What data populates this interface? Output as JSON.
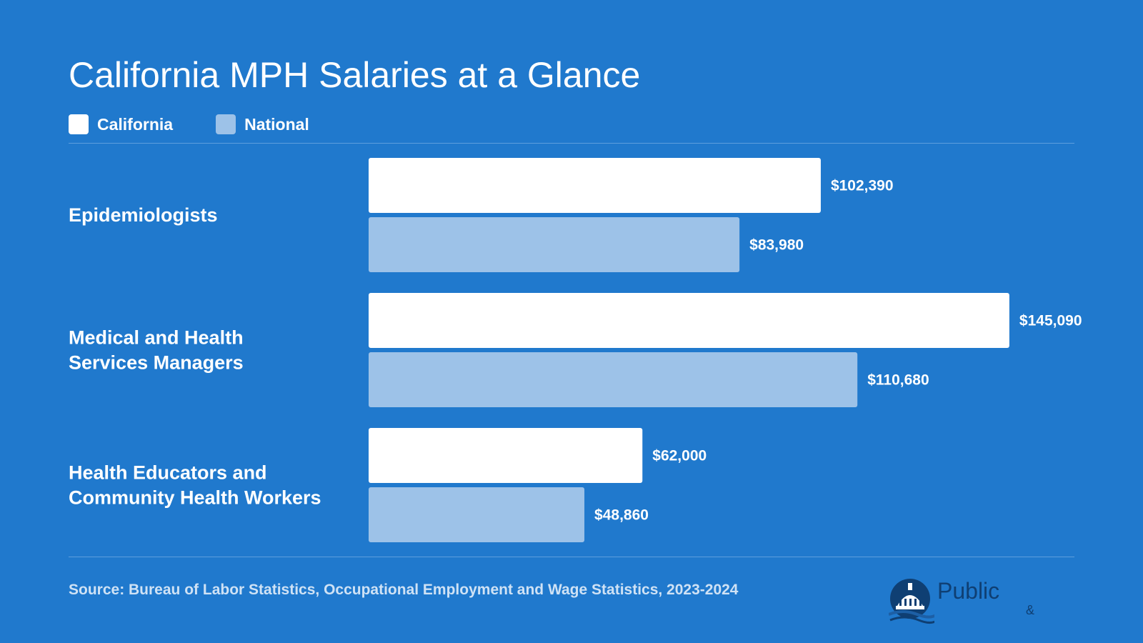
{
  "colors": {
    "background": "#2079cd",
    "california": "#ffffff",
    "national": "#9dc2e8",
    "text": "#ffffff",
    "source": "#cfe2f5"
  },
  "chart_data": {
    "type": "bar",
    "orientation": "horizontal",
    "title": "California MPH Salaries at a Glance",
    "categories": [
      [
        "Epidemiologists"
      ],
      [
        "Medical and Health",
        "Services Managers"
      ],
      [
        "Health Educators and",
        "Community Health Workers"
      ]
    ],
    "series": [
      {
        "name": "California",
        "values": [
          102390,
          145090,
          62000
        ],
        "labels": [
          "$102,390",
          "$145,090",
          "$62,000"
        ]
      },
      {
        "name": "National",
        "values": [
          83980,
          110680,
          48860
        ],
        "labels": [
          "$83,980",
          "$110,680",
          "$48,860"
        ]
      }
    ],
    "xlim": [
      0,
      165000
    ],
    "grid": false,
    "legend_position": "top-left"
  },
  "source": "Source: Bureau of Labor Statistics, Occupational Employment and Wage Statistics, 2023-2024",
  "logo": {
    "icon": "capitol-dome-icon",
    "word": "Public",
    "amp": "&"
  }
}
